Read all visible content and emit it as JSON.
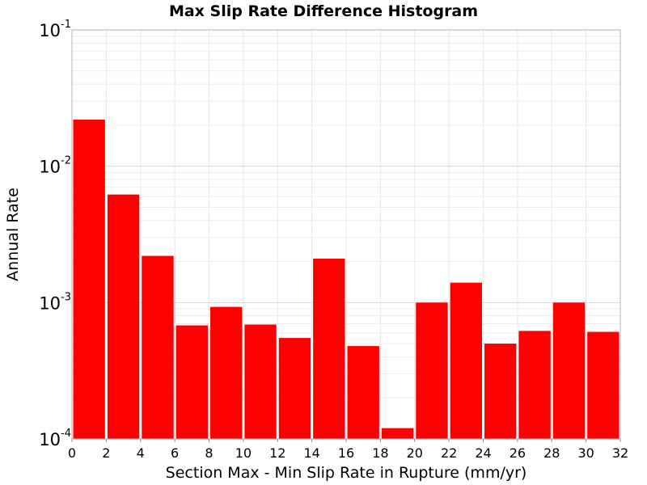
{
  "chart_data": {
    "type": "bar",
    "title": "Max Slip Rate Difference Histogram",
    "xlabel": "Section Max - Min Slip Rate in Rupture (mm/yr)",
    "ylabel": "Annual Rate",
    "y_scale": "log",
    "xlim": [
      0,
      32
    ],
    "ylim": [
      0.0001,
      0.1
    ],
    "bin_width": 2,
    "x_ticks": [
      "0",
      "2",
      "4",
      "6",
      "8",
      "10",
      "12",
      "14",
      "16",
      "18",
      "20",
      "22",
      "24",
      "26",
      "28",
      "30",
      "32"
    ],
    "y_ticks": [
      {
        "base": "10",
        "exp": "-4",
        "value": 0.0001
      },
      {
        "base": "10",
        "exp": "-3",
        "value": 0.001
      },
      {
        "base": "10",
        "exp": "-2",
        "value": 0.01
      },
      {
        "base": "10",
        "exp": "-1",
        "value": 0.1
      }
    ],
    "grid": true,
    "bar_color": "#ff0000",
    "bins": [
      {
        "x_start": 0,
        "x_end": 2,
        "value": 0.022
      },
      {
        "x_start": 2,
        "x_end": 4,
        "value": 0.0062
      },
      {
        "x_start": 4,
        "x_end": 6,
        "value": 0.0022
      },
      {
        "x_start": 6,
        "x_end": 8,
        "value": 0.00068
      },
      {
        "x_start": 8,
        "x_end": 10,
        "value": 0.00093
      },
      {
        "x_start": 10,
        "x_end": 12,
        "value": 0.00069
      },
      {
        "x_start": 12,
        "x_end": 14,
        "value": 0.00055
      },
      {
        "x_start": 14,
        "x_end": 16,
        "value": 0.0021
      },
      {
        "x_start": 16,
        "x_end": 18,
        "value": 0.00048
      },
      {
        "x_start": 18,
        "x_end": 20,
        "value": 0.00012
      },
      {
        "x_start": 20,
        "x_end": 22,
        "value": 0.001
      },
      {
        "x_start": 22,
        "x_end": 24,
        "value": 0.0014
      },
      {
        "x_start": 24,
        "x_end": 26,
        "value": 0.0005
      },
      {
        "x_start": 26,
        "x_end": 28,
        "value": 0.00062
      },
      {
        "x_start": 28,
        "x_end": 30,
        "value": 0.001
      },
      {
        "x_start": 30,
        "x_end": 32,
        "value": 0.00061
      }
    ]
  }
}
